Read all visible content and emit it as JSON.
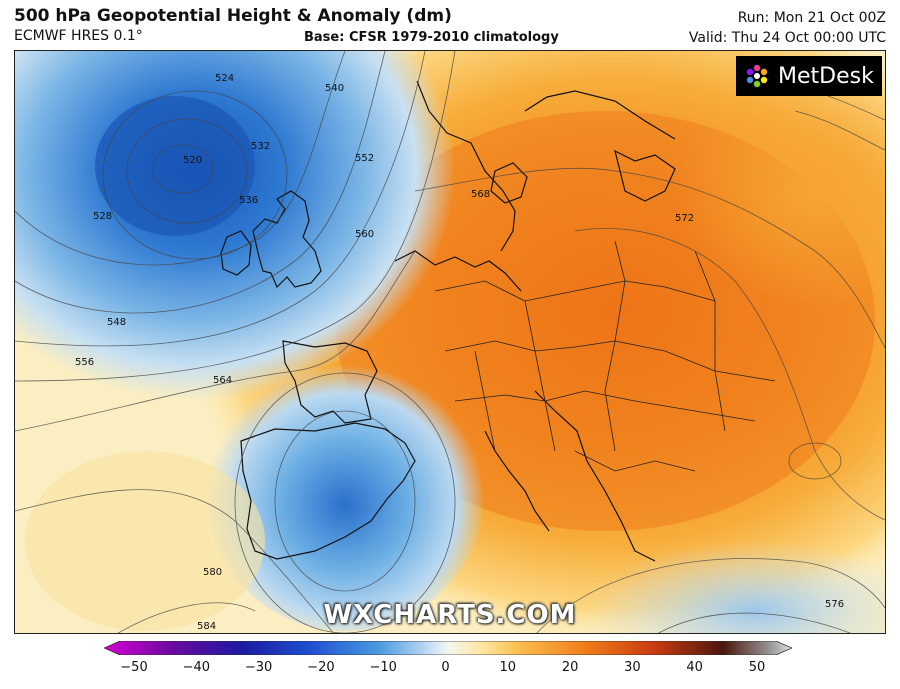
{
  "header": {
    "title": "500 hPa Geopotential Height & Anomaly (dm)",
    "model": "ECMWF HRES 0.1°",
    "base": "Base: CFSR 1979-2010 climatology",
    "run": "Run: Mon 21 Oct 00Z",
    "valid": "Valid: Thu 24 Oct 00:00 UTC"
  },
  "logo": {
    "text": "MetDesk"
  },
  "watermark": "WXCHARTS.COM",
  "contour_labels": [
    "524",
    "520",
    "528",
    "532",
    "536",
    "540",
    "548",
    "552",
    "556",
    "560",
    "564",
    "568",
    "572",
    "576",
    "580",
    "584"
  ],
  "colorbar": {
    "ticks": [
      "−50",
      "−40",
      "−30",
      "−20",
      "−10",
      "0",
      "10",
      "20",
      "30",
      "40",
      "50"
    ],
    "colors": [
      "#d600d6",
      "#5a0090",
      "#1a1aa0",
      "#1f4fd0",
      "#4a9ae0",
      "#a9d0ec",
      "#f5f5f0",
      "#fde8a0",
      "#f9b84a",
      "#f07d1a",
      "#d44010",
      "#8a1a10",
      "#3a1a1a",
      "#cfcfcf"
    ]
  }
}
